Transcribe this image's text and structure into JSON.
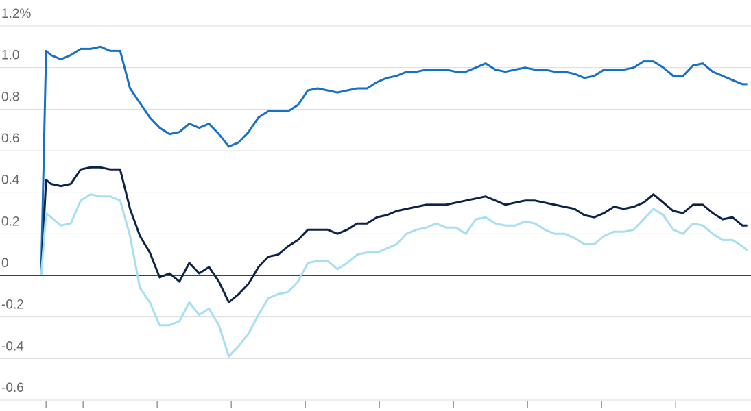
{
  "chart_data": {
    "type": "line",
    "x": [
      0,
      1,
      2,
      4,
      6,
      8,
      10,
      12,
      14,
      16,
      18,
      20,
      22,
      24,
      26,
      28,
      30,
      32,
      34,
      36,
      38,
      40,
      42,
      44,
      46,
      48,
      50,
      52,
      54,
      56,
      58,
      60,
      62,
      64,
      66,
      68,
      70,
      72,
      74,
      76,
      78,
      80,
      82,
      84,
      86,
      88,
      90,
      92,
      94,
      96,
      98,
      100,
      102,
      104,
      106,
      108,
      110,
      112,
      114,
      116,
      118,
      120,
      122,
      124,
      126,
      128,
      130,
      132,
      134,
      136,
      138,
      140,
      142,
      143
    ],
    "series": [
      {
        "color": "#1670c8",
        "values": [
          0,
          1.08,
          1.06,
          1.04,
          1.06,
          1.09,
          1.09,
          1.1,
          1.08,
          1.08,
          0.9,
          0.83,
          0.76,
          0.71,
          0.68,
          0.69,
          0.73,
          0.71,
          0.73,
          0.68,
          0.62,
          0.64,
          0.69,
          0.76,
          0.79,
          0.79,
          0.79,
          0.82,
          0.89,
          0.9,
          0.89,
          0.88,
          0.89,
          0.9,
          0.9,
          0.93,
          0.95,
          0.96,
          0.98,
          0.98,
          0.99,
          0.99,
          0.99,
          0.98,
          0.98,
          1.0,
          1.02,
          0.99,
          0.98,
          0.99,
          1.0,
          0.99,
          0.99,
          0.98,
          0.98,
          0.97,
          0.95,
          0.96,
          0.99,
          0.99,
          0.99,
          1.0,
          1.03,
          1.03,
          1.0,
          0.96,
          0.96,
          1.01,
          1.02,
          0.98,
          0.96,
          0.94,
          0.92,
          0.92
        ]
      },
      {
        "color": "#0d2248",
        "values": [
          0,
          0.46,
          0.44,
          0.43,
          0.44,
          0.51,
          0.52,
          0.52,
          0.51,
          0.51,
          0.32,
          0.19,
          0.11,
          -0.01,
          0.01,
          -0.03,
          0.06,
          0.01,
          0.04,
          -0.03,
          -0.13,
          -0.09,
          -0.04,
          0.04,
          0.09,
          0.1,
          0.14,
          0.17,
          0.22,
          0.22,
          0.22,
          0.2,
          0.22,
          0.25,
          0.25,
          0.28,
          0.29,
          0.31,
          0.32,
          0.33,
          0.34,
          0.34,
          0.34,
          0.35,
          0.36,
          0.37,
          0.38,
          0.36,
          0.34,
          0.35,
          0.36,
          0.36,
          0.35,
          0.34,
          0.33,
          0.32,
          0.29,
          0.28,
          0.3,
          0.33,
          0.32,
          0.33,
          0.35,
          0.39,
          0.35,
          0.31,
          0.3,
          0.34,
          0.34,
          0.3,
          0.27,
          0.28,
          0.24,
          0.24
        ]
      },
      {
        "color": "#a6dff0",
        "values": [
          0,
          0.3,
          0.28,
          0.24,
          0.25,
          0.36,
          0.39,
          0.38,
          0.38,
          0.36,
          0.19,
          -0.06,
          -0.13,
          -0.24,
          -0.24,
          -0.22,
          -0.13,
          -0.19,
          -0.16,
          -0.24,
          -0.39,
          -0.34,
          -0.28,
          -0.19,
          -0.11,
          -0.09,
          -0.08,
          -0.03,
          0.06,
          0.07,
          0.07,
          0.03,
          0.06,
          0.1,
          0.11,
          0.11,
          0.13,
          0.15,
          0.2,
          0.22,
          0.23,
          0.25,
          0.23,
          0.23,
          0.2,
          0.27,
          0.28,
          0.25,
          0.24,
          0.24,
          0.26,
          0.25,
          0.22,
          0.2,
          0.2,
          0.18,
          0.15,
          0.15,
          0.19,
          0.21,
          0.21,
          0.22,
          0.27,
          0.32,
          0.29,
          0.22,
          0.2,
          0.25,
          0.24,
          0.2,
          0.17,
          0.17,
          0.14,
          0.12
        ]
      }
    ],
    "xlim": [
      0,
      143.75
    ],
    "xticks": [
      1,
      8.5,
      23.5,
      38.5,
      53.5,
      68.5,
      83.5,
      98.5,
      113.5,
      128.5
    ],
    "ylim": [
      -0.6,
      1.2
    ],
    "yticks": [
      {
        "value": 1.2,
        "label": "1.2%"
      },
      {
        "value": 1,
        "label": "1.0"
      },
      0.8,
      0.6,
      0.4,
      0.2,
      0,
      -0.2,
      -0.4,
      -0.6
    ],
    "grid": true
  }
}
